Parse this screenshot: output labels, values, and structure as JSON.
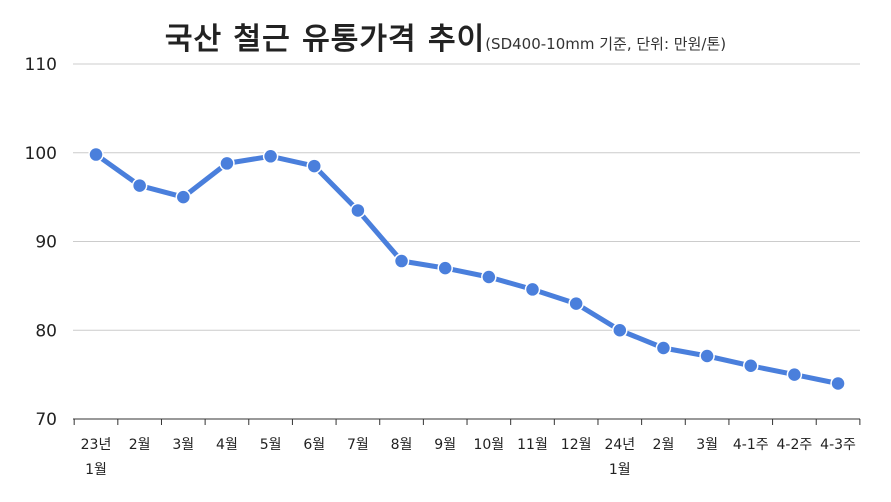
{
  "chart_data": {
    "type": "line",
    "title": "국산 철근 유통가격 추이",
    "subtitle": "(SD400-10mm 기준, 단위: 만원/톤)",
    "xlabel": "",
    "ylabel": "",
    "categories": [
      "23년\n1월",
      "2월",
      "3월",
      "4월",
      "5월",
      "6월",
      "7월",
      "8월",
      "9월",
      "10월",
      "11월",
      "12월",
      "24년\n1월",
      "2월",
      "3월",
      "4-1주",
      "4-2주",
      "4-3주"
    ],
    "series": [
      {
        "values": [
          99.8,
          96.3,
          95.0,
          98.8,
          99.6,
          98.5,
          93.5,
          87.8,
          87.0,
          86.0,
          84.6,
          83.0,
          80.0,
          78.0,
          77.1,
          76.0,
          75.0,
          74.0
        ],
        "color": "#4a7fdc"
      }
    ],
    "ylim": [
      70,
      110
    ],
    "yticks": [
      70,
      80,
      90,
      100,
      110
    ],
    "grid": true,
    "legend": "none"
  }
}
